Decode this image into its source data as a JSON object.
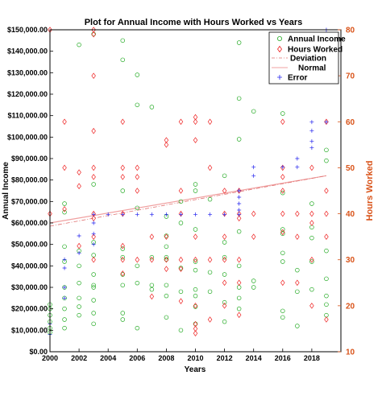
{
  "chart_data": {
    "type": "scatter",
    "title": "Plot for Annual Income with Hours Worked vs Years",
    "xlabel": "Years",
    "ylabel": "Annual Income",
    "ylabel_right": "Hours Worked",
    "xlim": [
      2000,
      2020
    ],
    "ylim": [
      0,
      150000
    ],
    "ylim_right": [
      10,
      80
    ],
    "x_ticks": [
      "2000",
      "2002",
      "2004",
      "2006",
      "2008",
      "2010",
      "2012",
      "2014",
      "2016",
      "2018"
    ],
    "y_ticks_left": [
      "$0.00",
      "$10,000.00",
      "$20,000.00",
      "$30,000.00",
      "$40,000.00",
      "$50,000.00",
      "$60,000.00",
      "$70,000.00",
      "$80,000.00",
      "$90,000.00",
      "$100,000.00",
      "$110,000.00",
      "$120,000.00",
      "$130,000.00",
      "$140,000.00",
      "$150,000.00"
    ],
    "y_ticks_right": [
      "10",
      "20",
      "30",
      "40",
      "50",
      "60",
      "70",
      "80"
    ],
    "legend_position": "top-right",
    "grid": false,
    "colors": {
      "income": "#22aa22",
      "hours": "#ee2222",
      "deviation": "#e07070",
      "normal": "#f0a0a0",
      "error": "#2222ee",
      "right_axis": "#d95319"
    },
    "series": [
      {
        "name": "Annual Income",
        "axis": "left",
        "marker": "circle",
        "points": [
          [
            2000,
            9000
          ],
          [
            2000,
            11000
          ],
          [
            2000,
            14000
          ],
          [
            2000,
            17000
          ],
          [
            2000,
            20000
          ],
          [
            2000,
            22000
          ],
          [
            2001,
            11000
          ],
          [
            2001,
            15000
          ],
          [
            2001,
            20000
          ],
          [
            2001,
            25000
          ],
          [
            2001,
            30000
          ],
          [
            2001,
            42000
          ],
          [
            2001,
            49000
          ],
          [
            2001,
            65000
          ],
          [
            2001,
            69000
          ],
          [
            2002,
            17000
          ],
          [
            2002,
            21000
          ],
          [
            2002,
            25000
          ],
          [
            2002,
            32000
          ],
          [
            2002,
            40000
          ],
          [
            2002,
            47000
          ],
          [
            2002,
            143000
          ],
          [
            2003,
            13000
          ],
          [
            2003,
            18000
          ],
          [
            2003,
            24000
          ],
          [
            2003,
            30000
          ],
          [
            2003,
            31000
          ],
          [
            2003,
            36000
          ],
          [
            2003,
            45000
          ],
          [
            2003,
            51000
          ],
          [
            2003,
            78000
          ],
          [
            2003,
            148000
          ],
          [
            2005,
            15000
          ],
          [
            2005,
            18000
          ],
          [
            2005,
            31000
          ],
          [
            2005,
            36000
          ],
          [
            2005,
            44000
          ],
          [
            2005,
            48000
          ],
          [
            2005,
            75000
          ],
          [
            2005,
            136000
          ],
          [
            2005,
            145000
          ],
          [
            2006,
            11000
          ],
          [
            2006,
            32000
          ],
          [
            2006,
            40000
          ],
          [
            2006,
            67000
          ],
          [
            2006,
            115000
          ],
          [
            2006,
            129000
          ],
          [
            2007,
            29000
          ],
          [
            2007,
            31000
          ],
          [
            2007,
            44000
          ],
          [
            2007,
            114000
          ],
          [
            2008,
            16000
          ],
          [
            2008,
            26000
          ],
          [
            2008,
            31000
          ],
          [
            2008,
            43000
          ],
          [
            2008,
            44000
          ],
          [
            2008,
            49000
          ],
          [
            2008,
            54000
          ],
          [
            2008,
            63000
          ],
          [
            2009,
            10000
          ],
          [
            2009,
            28000
          ],
          [
            2009,
            39000
          ],
          [
            2009,
            60000
          ],
          [
            2009,
            70000
          ],
          [
            2010,
            13000
          ],
          [
            2010,
            21000
          ],
          [
            2010,
            26000
          ],
          [
            2010,
            29000
          ],
          [
            2010,
            38000
          ],
          [
            2010,
            42000
          ],
          [
            2010,
            57000
          ],
          [
            2010,
            75000
          ],
          [
            2010,
            78000
          ],
          [
            2011,
            28000
          ],
          [
            2011,
            37000
          ],
          [
            2011,
            71000
          ],
          [
            2012,
            14000
          ],
          [
            2012,
            23000
          ],
          [
            2012,
            36000
          ],
          [
            2012,
            44000
          ],
          [
            2012,
            51000
          ],
          [
            2012,
            82000
          ],
          [
            2013,
            20000
          ],
          [
            2013,
            25000
          ],
          [
            2013,
            30000
          ],
          [
            2013,
            40000
          ],
          [
            2013,
            56000
          ],
          [
            2013,
            99000
          ],
          [
            2013,
            118000
          ],
          [
            2013,
            144000
          ],
          [
            2014,
            30000
          ],
          [
            2014,
            33000
          ],
          [
            2014,
            112000
          ],
          [
            2016,
            16000
          ],
          [
            2016,
            19000
          ],
          [
            2016,
            42000
          ],
          [
            2016,
            46000
          ],
          [
            2016,
            55000
          ],
          [
            2016,
            57000
          ],
          [
            2016,
            74000
          ],
          [
            2016,
            111000
          ],
          [
            2017,
            12000
          ],
          [
            2017,
            28000
          ],
          [
            2017,
            38000
          ],
          [
            2018,
            29000
          ],
          [
            2018,
            42000
          ],
          [
            2018,
            53000
          ],
          [
            2018,
            58000
          ],
          [
            2018,
            69000
          ],
          [
            2019,
            17000
          ],
          [
            2019,
            22000
          ],
          [
            2019,
            26000
          ],
          [
            2019,
            34000
          ],
          [
            2019,
            47000
          ],
          [
            2019,
            89000
          ],
          [
            2019,
            94000
          ]
        ]
      },
      {
        "name": "Hours Worked",
        "axis": "right",
        "marker": "diamond",
        "points": [
          [
            2000,
            80
          ],
          [
            2000,
            40
          ],
          [
            2001,
            60
          ],
          [
            2001,
            50
          ],
          [
            2001,
            41
          ],
          [
            2002,
            49
          ],
          [
            2002,
            46
          ],
          [
            2002,
            33
          ],
          [
            2003,
            80
          ],
          [
            2003,
            79
          ],
          [
            2003,
            70
          ],
          [
            2003,
            58
          ],
          [
            2003,
            50
          ],
          [
            2003,
            48
          ],
          [
            2003,
            40
          ],
          [
            2003,
            39
          ],
          [
            2003,
            35
          ],
          [
            2003,
            30
          ],
          [
            2005,
            60
          ],
          [
            2005,
            50
          ],
          [
            2005,
            48
          ],
          [
            2005,
            40
          ],
          [
            2005,
            33
          ],
          [
            2005,
            30
          ],
          [
            2005,
            27
          ],
          [
            2006,
            50
          ],
          [
            2006,
            48
          ],
          [
            2006,
            45
          ],
          [
            2006,
            30
          ],
          [
            2007,
            35
          ],
          [
            2007,
            30
          ],
          [
            2007,
            22
          ],
          [
            2008,
            56
          ],
          [
            2008,
            55
          ],
          [
            2008,
            35
          ],
          [
            2008,
            30
          ],
          [
            2008,
            28
          ],
          [
            2009,
            60
          ],
          [
            2009,
            45
          ],
          [
            2009,
            40
          ],
          [
            2009,
            30
          ],
          [
            2009,
            28
          ],
          [
            2009,
            21
          ],
          [
            2010,
            61
          ],
          [
            2010,
            60
          ],
          [
            2010,
            56
          ],
          [
            2010,
            35
          ],
          [
            2010,
            30
          ],
          [
            2010,
            20
          ],
          [
            2010,
            16
          ],
          [
            2010,
            15
          ],
          [
            2010,
            14
          ],
          [
            2011,
            60
          ],
          [
            2011,
            50
          ],
          [
            2011,
            30
          ],
          [
            2011,
            17
          ],
          [
            2012,
            45
          ],
          [
            2012,
            40
          ],
          [
            2012,
            35
          ],
          [
            2012,
            30
          ],
          [
            2012,
            25
          ],
          [
            2012,
            20
          ],
          [
            2013,
            45
          ],
          [
            2013,
            40
          ],
          [
            2013,
            39
          ],
          [
            2013,
            30
          ],
          [
            2013,
            25
          ],
          [
            2013,
            18
          ],
          [
            2014,
            40
          ],
          [
            2014,
            35
          ],
          [
            2016,
            60
          ],
          [
            2016,
            50
          ],
          [
            2016,
            48
          ],
          [
            2016,
            45
          ],
          [
            2016,
            40
          ],
          [
            2016,
            36
          ],
          [
            2016,
            25
          ],
          [
            2017,
            40
          ],
          [
            2017,
            35
          ],
          [
            2017,
            25
          ],
          [
            2018,
            50
          ],
          [
            2018,
            40
          ],
          [
            2018,
            38
          ],
          [
            2018,
            30
          ],
          [
            2018,
            20
          ],
          [
            2019,
            60
          ],
          [
            2019,
            45
          ],
          [
            2019,
            40
          ],
          [
            2019,
            35
          ],
          [
            2019,
            17
          ]
        ]
      },
      {
        "name": "Deviation",
        "axis": "left",
        "marker": "line",
        "points": [
          [
            2000,
            58500
          ],
          [
            2019,
            82000
          ]
        ]
      },
      {
        "name": "Normal",
        "axis": "left",
        "marker": "line",
        "points": [
          [
            2000,
            60000
          ],
          [
            2019,
            82000
          ]
        ]
      },
      {
        "name": "Error",
        "axis": "left",
        "marker": "plus",
        "points": [
          [
            2000,
            13000
          ],
          [
            2000,
            8000
          ],
          [
            2001,
            25000
          ],
          [
            2001,
            30000
          ],
          [
            2001,
            39000
          ],
          [
            2001,
            43000
          ],
          [
            2002,
            46000
          ],
          [
            2002,
            54000
          ],
          [
            2003,
            50000
          ],
          [
            2003,
            55000
          ],
          [
            2003,
            60000
          ],
          [
            2003,
            64000
          ],
          [
            2004,
            64000
          ],
          [
            2005,
            64000
          ],
          [
            2006,
            64000
          ],
          [
            2007,
            64000
          ],
          [
            2008,
            64000
          ],
          [
            2009,
            64000
          ],
          [
            2010,
            64000
          ],
          [
            2011,
            64000
          ],
          [
            2012,
            64000
          ],
          [
            2013,
            64000
          ],
          [
            2013,
            66000
          ],
          [
            2013,
            69000
          ],
          [
            2013,
            72000
          ],
          [
            2013,
            75000
          ],
          [
            2014,
            82000
          ],
          [
            2014,
            86000
          ],
          [
            2016,
            86000
          ],
          [
            2017,
            86000
          ],
          [
            2017,
            90000
          ],
          [
            2018,
            95000
          ],
          [
            2018,
            98000
          ],
          [
            2018,
            103000
          ],
          [
            2018,
            107000
          ],
          [
            2019,
            107000
          ],
          [
            2019,
            150000
          ]
        ]
      }
    ]
  }
}
